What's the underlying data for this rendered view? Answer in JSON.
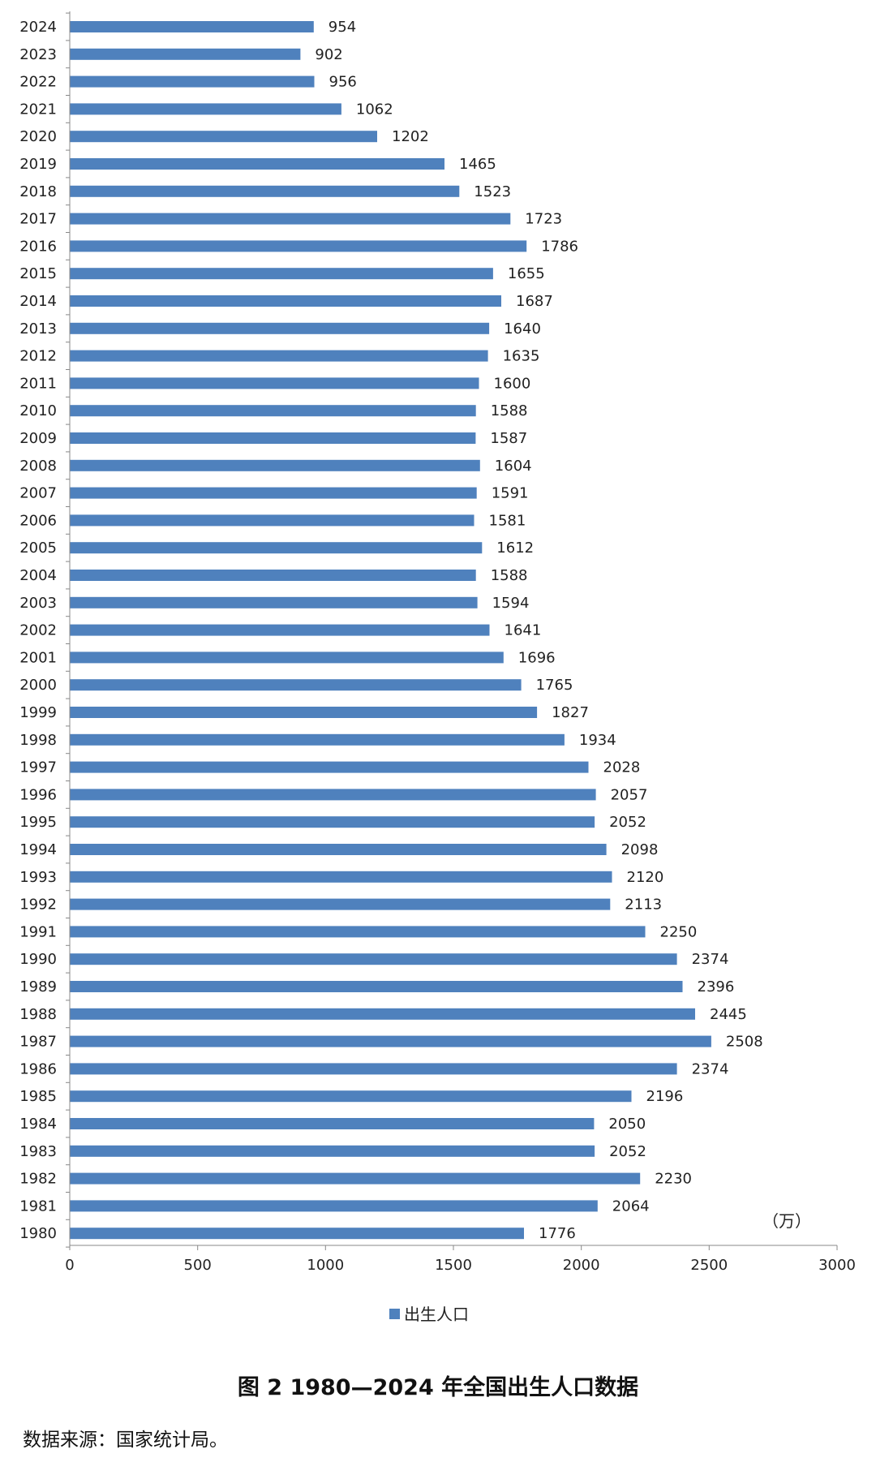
{
  "chart_data": {
    "type": "bar",
    "orientation": "horizontal",
    "categories": [
      "2024",
      "2023",
      "2022",
      "2021",
      "2020",
      "2019",
      "2018",
      "2017",
      "2016",
      "2015",
      "2014",
      "2013",
      "2012",
      "2011",
      "2010",
      "2009",
      "2008",
      "2007",
      "2006",
      "2005",
      "2004",
      "2003",
      "2002",
      "2001",
      "2000",
      "1999",
      "1998",
      "1997",
      "1996",
      "1995",
      "1994",
      "1993",
      "1992",
      "1991",
      "1990",
      "1989",
      "1988",
      "1987",
      "1986",
      "1985",
      "1984",
      "1983",
      "1982",
      "1981",
      "1980"
    ],
    "series": [
      {
        "name": "出生人口",
        "values": [
          954,
          902,
          956,
          1062,
          1202,
          1465,
          1523,
          1723,
          1786,
          1655,
          1687,
          1640,
          1635,
          1600,
          1588,
          1587,
          1604,
          1591,
          1581,
          1612,
          1588,
          1594,
          1641,
          1696,
          1765,
          1827,
          1934,
          2028,
          2057,
          2052,
          2098,
          2120,
          2113,
          2250,
          2374,
          2396,
          2445,
          2508,
          2374,
          2196,
          2050,
          2052,
          2230,
          2064,
          1776
        ]
      }
    ],
    "xlim": [
      0,
      3000
    ],
    "xticks": [
      0,
      500,
      1000,
      1500,
      2000,
      2500,
      3000
    ],
    "unit": "（万）",
    "grid": false,
    "legend": "bottom-center",
    "bar_color": "#4f81bd"
  },
  "caption": "图 2 1980—2024 年全国出生人口数据",
  "source": "数据来源：国家统计局。"
}
